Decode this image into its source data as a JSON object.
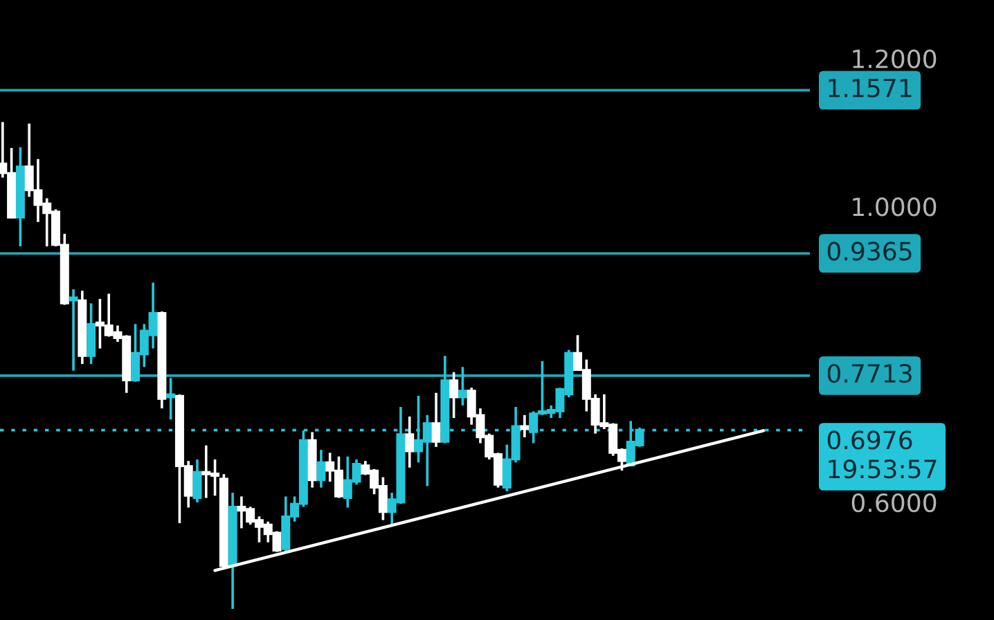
{
  "chart_data": {
    "type": "candlestick",
    "categories": [
      null,
      null,
      null,
      null,
      null,
      null,
      null,
      null,
      null,
      null,
      null,
      null,
      null,
      null,
      null,
      null,
      null,
      null,
      null,
      null,
      null,
      null,
      null,
      null,
      null,
      null,
      null,
      null,
      null,
      null,
      null,
      null,
      null,
      null,
      null,
      null,
      null,
      null,
      null,
      null,
      null,
      null,
      null,
      null,
      null,
      null,
      null,
      null,
      null,
      null,
      null,
      null,
      null,
      null,
      null,
      null,
      null,
      null,
      null,
      null,
      null,
      null,
      null,
      null,
      null,
      null,
      null,
      null,
      null,
      null,
      null,
      null,
      null,
      null,
      null,
      null,
      null,
      null,
      null,
      null,
      null,
      null,
      null,
      null,
      null,
      null,
      null
    ],
    "ohlc": [
      [
        1.058,
        1.114,
        1.039,
        1.045
      ],
      [
        1.045,
        1.079,
        0.984,
        0.985
      ],
      [
        0.985,
        1.08,
        0.946,
        1.054
      ],
      [
        1.054,
        1.112,
        1.013,
        1.022
      ],
      [
        1.022,
        1.064,
        0.979,
        1.002
      ],
      [
        1.004,
        1.011,
        0.946,
        0.991
      ],
      [
        0.993,
        0.996,
        0.946,
        0.948
      ],
      [
        0.948,
        0.963,
        0.867,
        0.869
      ],
      [
        0.873,
        0.888,
        0.778,
        0.877
      ],
      [
        0.873,
        0.886,
        0.787,
        0.798
      ],
      [
        0.798,
        0.869,
        0.787,
        0.841
      ],
      [
        0.843,
        0.875,
        0.808,
        0.839
      ],
      [
        0.839,
        0.882,
        0.824,
        0.826
      ],
      [
        0.83,
        0.839,
        0.817,
        0.822
      ],
      [
        0.824,
        0.826,
        0.748,
        0.765
      ],
      [
        0.765,
        0.841,
        0.763,
        0.802
      ],
      [
        0.8,
        0.841,
        0.783,
        0.832
      ],
      [
        0.826,
        0.897,
        0.808,
        0.856
      ],
      [
        0.856,
        0.858,
        0.727,
        0.74
      ],
      [
        0.742,
        0.768,
        0.712,
        0.746
      ],
      [
        0.744,
        0.746,
        0.572,
        0.649
      ],
      [
        0.649,
        0.656,
        0.593,
        0.609
      ],
      [
        0.606,
        0.658,
        0.6,
        0.641
      ],
      [
        0.641,
        0.677,
        0.606,
        0.638
      ],
      [
        0.639,
        0.658,
        0.609,
        0.636
      ],
      [
        0.632,
        0.638,
        0.512,
        0.514
      ],
      [
        0.514,
        0.613,
        0.456,
        0.594
      ],
      [
        0.594,
        0.608,
        0.565,
        0.589
      ],
      [
        0.591,
        0.594,
        0.57,
        0.574
      ],
      [
        0.576,
        0.581,
        0.546,
        0.567
      ],
      [
        0.57,
        0.574,
        0.546,
        0.557
      ],
      [
        0.559,
        0.561,
        0.533,
        0.535
      ],
      [
        0.537,
        0.608,
        0.533,
        0.581
      ],
      [
        0.581,
        0.608,
        0.574,
        0.598
      ],
      [
        0.598,
        0.697,
        0.594,
        0.684
      ],
      [
        0.684,
        0.695,
        0.62,
        0.63
      ],
      [
        0.63,
        0.671,
        0.62,
        0.654
      ],
      [
        0.654,
        0.667,
        0.628,
        0.643
      ],
      [
        0.643,
        0.662,
        0.606,
        0.608
      ],
      [
        0.606,
        0.662,
        0.593,
        0.63
      ],
      [
        0.628,
        0.658,
        0.624,
        0.652
      ],
      [
        0.65,
        0.656,
        0.637,
        0.639
      ],
      [
        0.643,
        0.645,
        0.611,
        0.62
      ],
      [
        0.622,
        0.634,
        0.576,
        0.587
      ],
      [
        0.587,
        0.613,
        0.57,
        0.604
      ],
      [
        0.6,
        0.729,
        0.598,
        0.692
      ],
      [
        0.692,
        0.716,
        0.647,
        0.669
      ],
      [
        0.669,
        0.744,
        0.654,
        0.684
      ],
      [
        0.682,
        0.718,
        0.622,
        0.707
      ],
      [
        0.707,
        0.748,
        0.675,
        0.682
      ],
      [
        0.682,
        0.798,
        0.68,
        0.765
      ],
      [
        0.765,
        0.776,
        0.714,
        0.742
      ],
      [
        0.742,
        0.783,
        0.731,
        0.751
      ],
      [
        0.751,
        0.755,
        0.705,
        0.716
      ],
      [
        0.718,
        0.727,
        0.68,
        0.688
      ],
      [
        0.69,
        0.693,
        0.658,
        0.662
      ],
      [
        0.665,
        0.667,
        0.62,
        0.624
      ],
      [
        0.62,
        0.678,
        0.615,
        0.658
      ],
      [
        0.658,
        0.729,
        0.654,
        0.703
      ],
      [
        0.703,
        0.718,
        0.688,
        0.699
      ],
      [
        0.695,
        0.723,
        0.68,
        0.72
      ],
      [
        0.72,
        0.791,
        0.718,
        0.723
      ],
      [
        0.721,
        0.731,
        0.714,
        0.725
      ],
      [
        0.723,
        0.755,
        0.714,
        0.753
      ],
      [
        0.746,
        0.806,
        0.742,
        0.802
      ],
      [
        0.802,
        0.826,
        0.778,
        0.779
      ],
      [
        0.779,
        0.793,
        0.723,
        0.74
      ],
      [
        0.74,
        0.746,
        0.693,
        0.705
      ],
      [
        0.707,
        0.746,
        0.699,
        0.703
      ],
      [
        0.705,
        0.707,
        0.663,
        0.667
      ],
      [
        0.671,
        0.673,
        0.643,
        0.656
      ],
      [
        0.65,
        0.71,
        0.649,
        0.682
      ],
      [
        0.677,
        0.701,
        0.675,
        0.698
      ],
      null,
      null,
      null,
      null,
      null,
      null,
      null,
      null,
      null,
      null,
      null,
      null,
      null,
      null
    ],
    "colors": [
      "#ffffff",
      "#ffffff",
      "#26c6da",
      "#ffffff",
      "#ffffff",
      "#ffffff",
      "#ffffff",
      "#ffffff",
      "#26c6da",
      "#ffffff",
      "#26c6da",
      "#ffffff",
      "#ffffff",
      "#ffffff",
      "#ffffff",
      "#26c6da",
      "#26c6da",
      "#26c6da",
      "#ffffff",
      "#26c6da",
      "#ffffff",
      "#ffffff",
      "#26c6da",
      "#ffffff",
      "#ffffff",
      "#ffffff",
      "#26c6da",
      "#ffffff",
      "#ffffff",
      "#ffffff",
      "#ffffff",
      "#ffffff",
      "#26c6da",
      "#26c6da",
      "#26c6da",
      "#ffffff",
      "#26c6da",
      "#ffffff",
      "#ffffff",
      "#26c6da",
      "#26c6da",
      "#ffffff",
      "#ffffff",
      "#ffffff",
      "#26c6da",
      "#26c6da",
      "#ffffff",
      "#26c6da",
      "#26c6da",
      "#ffffff",
      "#26c6da",
      "#ffffff",
      "#26c6da",
      "#ffffff",
      "#ffffff",
      "#ffffff",
      "#ffffff",
      "#26c6da",
      "#26c6da",
      "#ffffff",
      "#26c6da",
      "#26c6da",
      "#26c6da",
      "#26c6da",
      "#26c6da",
      "#ffffff",
      "#ffffff",
      "#ffffff",
      "#ffffff",
      "#ffffff",
      "#ffffff",
      "#26c6da",
      "#26c6da",
      null,
      null,
      null,
      null,
      null,
      null,
      null,
      null,
      null,
      null,
      null,
      null,
      null,
      null
    ],
    "series": [
      {
        "type": "line",
        "values": [
          null,
          null,
          null,
          null,
          null,
          null,
          null,
          null,
          null,
          null,
          null,
          null,
          null,
          null,
          null,
          null,
          null,
          null,
          null,
          null,
          null,
          null,
          null,
          null,
          0.508,
          null,
          null,
          null,
          null,
          null,
          null,
          null,
          null,
          null,
          null,
          null,
          null,
          null,
          null,
          null,
          null,
          null,
          null,
          null,
          null,
          null,
          null,
          null,
          null,
          null,
          null,
          null,
          null,
          null,
          null,
          null,
          null,
          null,
          null,
          null,
          null,
          null,
          null,
          null,
          null,
          null,
          null,
          null,
          null,
          null,
          null,
          null,
          null,
          null,
          null,
          null,
          null,
          null,
          null,
          null,
          null,
          null,
          null,
          null,
          null,
          null,
          0.697
        ],
        "color": "#ffffff"
      }
    ],
    "ylim": [
      0.441,
      1.279
    ],
    "yticks": [
      {
        "value": 0.6,
        "label": "0.6000"
      },
      {
        "value": 1.0,
        "label": "1.0000"
      },
      {
        "value": 1.2,
        "label": "1.2000"
      }
    ],
    "tick_labels": "y",
    "grid": false,
    "ref_lines": [
      {
        "axis": "y",
        "value": 1.1571,
        "label": "1.1571",
        "color": "#1fa8ba",
        "line_style": "solid"
      },
      {
        "axis": "y",
        "value": 0.9365,
        "label": "0.9365",
        "color": "#1fa8ba",
        "line_style": "solid"
      },
      {
        "axis": "y",
        "value": 0.7713,
        "label": "0.7713",
        "color": "#1fa8ba",
        "line_style": "solid"
      },
      {
        "axis": "y",
        "value": 0.6976,
        "label": "0.6976\n19:53:57",
        "color": "#26c6da",
        "line_style": "dotted"
      }
    ]
  }
}
